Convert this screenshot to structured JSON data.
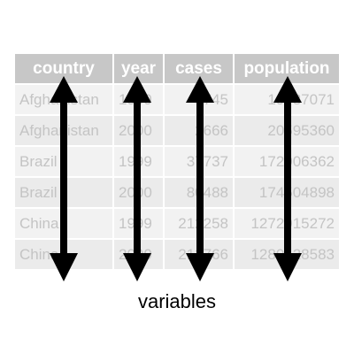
{
  "table": {
    "headers": [
      "country",
      "year",
      "cases",
      "population"
    ],
    "rows": [
      [
        "Afghanistan",
        "1999",
        "745",
        "19987071"
      ],
      [
        "Afghanistan",
        "2000",
        "2666",
        "20595360"
      ],
      [
        "Brazil",
        "1999",
        "37737",
        "172006362"
      ],
      [
        "Brazil",
        "2000",
        "80488",
        "174504898"
      ],
      [
        "China",
        "1999",
        "212258",
        "1272915272"
      ],
      [
        "China",
        "2000",
        "213766",
        "1280428583"
      ]
    ]
  },
  "caption": "variables",
  "colors": {
    "header_bg": "#c7c7c7",
    "header_text": "#ffffff",
    "cell_text": "#c4c4c4",
    "row_bg_a": "#f2f2f2",
    "row_bg_b": "#ebebeb",
    "arrow": "#000000"
  }
}
